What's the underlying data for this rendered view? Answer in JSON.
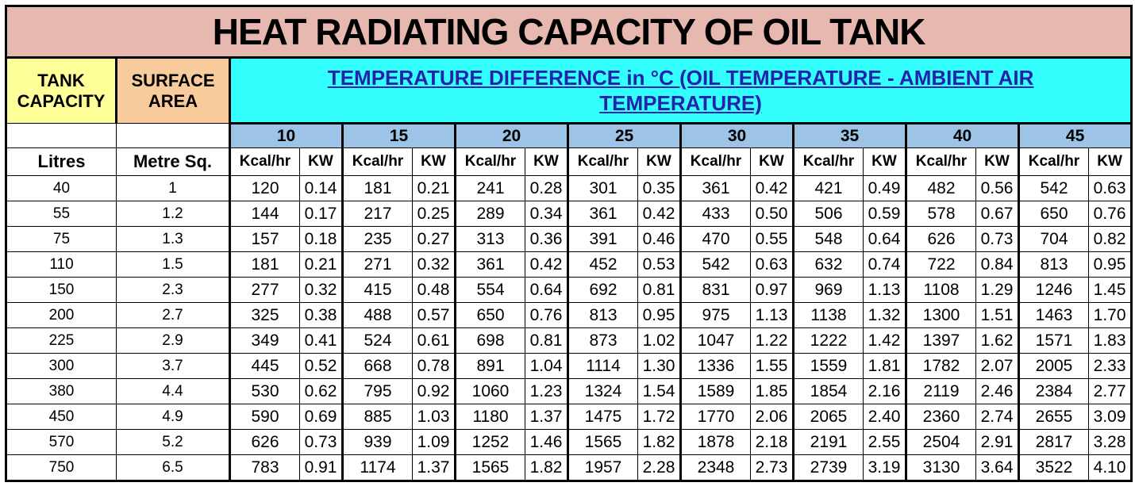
{
  "header": {
    "title": "HEAT RADIATING CAPACITY OF OIL TANK",
    "tank_capacity": "TANK CAPACITY",
    "surface_area": "SURFACE AREA",
    "temperature_title": "TEMPERATURE DIFFERENCE in °C (OIL TEMPERATURE  -  AMBIENT AIR TEMPERATURE)",
    "temperatures": [
      "10",
      "15",
      "20",
      "25",
      "30",
      "35",
      "40",
      "45"
    ],
    "units": {
      "litres": "Litres",
      "metre": "Metre Sq.",
      "kcal": "Kcal/hr",
      "kw": "KW"
    }
  },
  "table": {
    "rows": [
      [
        "40",
        "1",
        "120",
        "0.14",
        "181",
        "0.21",
        "241",
        "0.28",
        "301",
        "0.35",
        "361",
        "0.42",
        "421",
        "0.49",
        "482",
        "0.56",
        "542",
        "0.63"
      ],
      [
        "55",
        "1.2",
        "144",
        "0.17",
        "217",
        "0.25",
        "289",
        "0.34",
        "361",
        "0.42",
        "433",
        "0.50",
        "506",
        "0.59",
        "578",
        "0.67",
        "650",
        "0.76"
      ],
      [
        "75",
        "1.3",
        "157",
        "0.18",
        "235",
        "0.27",
        "313",
        "0.36",
        "391",
        "0.46",
        "470",
        "0.55",
        "548",
        "0.64",
        "626",
        "0.73",
        "704",
        "0.82"
      ],
      [
        "110",
        "1.5",
        "181",
        "0.21",
        "271",
        "0.32",
        "361",
        "0.42",
        "452",
        "0.53",
        "542",
        "0.63",
        "632",
        "0.74",
        "722",
        "0.84",
        "813",
        "0.95"
      ],
      [
        "150",
        "2.3",
        "277",
        "0.32",
        "415",
        "0.48",
        "554",
        "0.64",
        "692",
        "0.81",
        "831",
        "0.97",
        "969",
        "1.13",
        "1108",
        "1.29",
        "1246",
        "1.45"
      ],
      [
        "200",
        "2.7",
        "325",
        "0.38",
        "488",
        "0.57",
        "650",
        "0.76",
        "813",
        "0.95",
        "975",
        "1.13",
        "1138",
        "1.32",
        "1300",
        "1.51",
        "1463",
        "1.70"
      ],
      [
        "225",
        "2.9",
        "349",
        "0.41",
        "524",
        "0.61",
        "698",
        "0.81",
        "873",
        "1.02",
        "1047",
        "1.22",
        "1222",
        "1.42",
        "1397",
        "1.62",
        "1571",
        "1.83"
      ],
      [
        "300",
        "3.7",
        "445",
        "0.52",
        "668",
        "0.78",
        "891",
        "1.04",
        "1114",
        "1.30",
        "1336",
        "1.55",
        "1559",
        "1.81",
        "1782",
        "2.07",
        "2005",
        "2.33"
      ],
      [
        "380",
        "4.4",
        "530",
        "0.62",
        "795",
        "0.92",
        "1060",
        "1.23",
        "1324",
        "1.54",
        "1589",
        "1.85",
        "1854",
        "2.16",
        "2119",
        "2.46",
        "2384",
        "2.77"
      ],
      [
        "450",
        "4.9",
        "590",
        "0.69",
        "885",
        "1.03",
        "1180",
        "1.37",
        "1475",
        "1.72",
        "1770",
        "2.06",
        "2065",
        "2.40",
        "2360",
        "2.74",
        "2655",
        "3.09"
      ],
      [
        "570",
        "5.2",
        "626",
        "0.73",
        "939",
        "1.09",
        "1252",
        "1.46",
        "1565",
        "1.82",
        "1878",
        "2.18",
        "2191",
        "2.55",
        "2504",
        "2.91",
        "2817",
        "3.28"
      ],
      [
        "750",
        "6.5",
        "783",
        "0.91",
        "1174",
        "1.37",
        "1565",
        "1.82",
        "1957",
        "2.28",
        "2348",
        "2.73",
        "2739",
        "3.19",
        "3130",
        "3.64",
        "3522",
        "4.10"
      ]
    ]
  }
}
